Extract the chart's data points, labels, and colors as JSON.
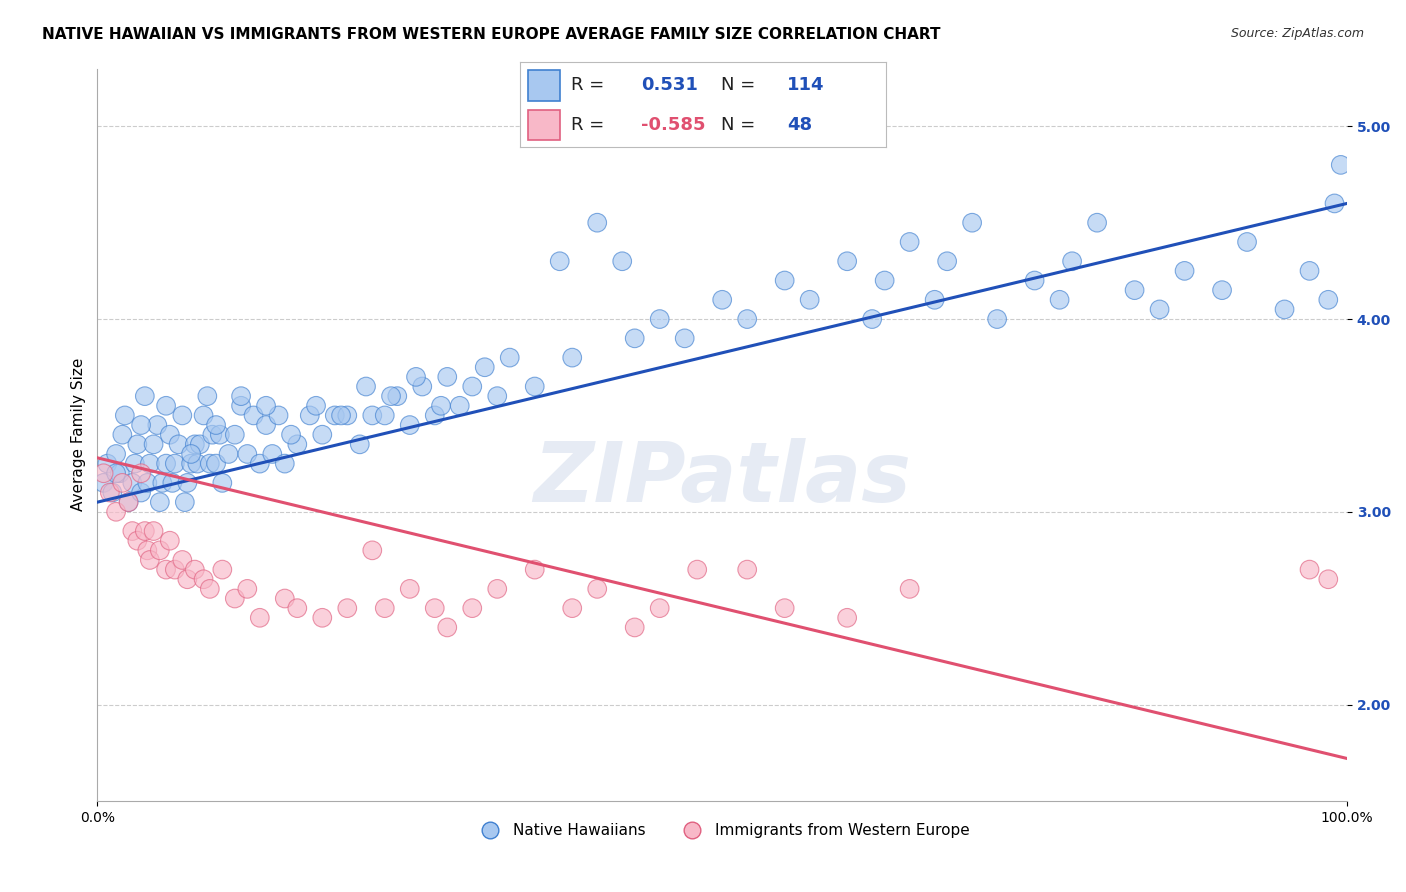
{
  "title": "NATIVE HAWAIIAN VS IMMIGRANTS FROM WESTERN EUROPE AVERAGE FAMILY SIZE CORRELATION CHART",
  "source": "Source: ZipAtlas.com",
  "ylabel": "Average Family Size",
  "xmin": 0.0,
  "xmax": 1.0,
  "ymin": 1.5,
  "ymax": 5.3,
  "yticks": [
    2.0,
    3.0,
    4.0,
    5.0
  ],
  "ytick_labels": [
    "2.00",
    "3.00",
    "4.00",
    "5.00"
  ],
  "xtick_labels": [
    "0.0%",
    "100.0%"
  ],
  "blue_R": 0.531,
  "blue_N": 114,
  "pink_R": -0.585,
  "pink_N": 48,
  "blue_face_color": "#A8C8F0",
  "pink_face_color": "#F8B8C8",
  "blue_edge_color": "#4080D0",
  "pink_edge_color": "#E06080",
  "blue_line_color": "#2050B8",
  "pink_line_color": "#E05070",
  "watermark": "ZIPatlas",
  "legend1_label": "Native Hawaiians",
  "legend2_label": "Immigrants from Western Europe",
  "blue_scatter_x": [
    0.005,
    0.008,
    0.012,
    0.015,
    0.018,
    0.02,
    0.022,
    0.025,
    0.028,
    0.03,
    0.032,
    0.035,
    0.038,
    0.04,
    0.042,
    0.045,
    0.048,
    0.05,
    0.052,
    0.055,
    0.058,
    0.06,
    0.062,
    0.065,
    0.068,
    0.07,
    0.072,
    0.075,
    0.078,
    0.08,
    0.082,
    0.085,
    0.088,
    0.09,
    0.092,
    0.095,
    0.098,
    0.1,
    0.105,
    0.11,
    0.115,
    0.12,
    0.125,
    0.13,
    0.135,
    0.14,
    0.145,
    0.15,
    0.16,
    0.17,
    0.18,
    0.19,
    0.2,
    0.21,
    0.22,
    0.23,
    0.24,
    0.25,
    0.26,
    0.27,
    0.28,
    0.29,
    0.3,
    0.31,
    0.32,
    0.33,
    0.35,
    0.37,
    0.38,
    0.4,
    0.42,
    0.43,
    0.45,
    0.47,
    0.5,
    0.52,
    0.55,
    0.57,
    0.6,
    0.62,
    0.63,
    0.65,
    0.67,
    0.68,
    0.7,
    0.72,
    0.75,
    0.77,
    0.78,
    0.8,
    0.83,
    0.85,
    0.87,
    0.9,
    0.92,
    0.95,
    0.97,
    0.985,
    0.99,
    0.995,
    0.015,
    0.035,
    0.055,
    0.075,
    0.095,
    0.115,
    0.135,
    0.155,
    0.175,
    0.195,
    0.215,
    0.235,
    0.255,
    0.275
  ],
  "blue_scatter_y": [
    3.15,
    3.25,
    3.1,
    3.3,
    3.2,
    3.4,
    3.5,
    3.05,
    3.15,
    3.25,
    3.35,
    3.1,
    3.6,
    3.15,
    3.25,
    3.35,
    3.45,
    3.05,
    3.15,
    3.25,
    3.4,
    3.15,
    3.25,
    3.35,
    3.5,
    3.05,
    3.15,
    3.25,
    3.35,
    3.25,
    3.35,
    3.5,
    3.6,
    3.25,
    3.4,
    3.25,
    3.4,
    3.15,
    3.3,
    3.4,
    3.55,
    3.3,
    3.5,
    3.25,
    3.45,
    3.3,
    3.5,
    3.25,
    3.35,
    3.5,
    3.4,
    3.5,
    3.5,
    3.35,
    3.5,
    3.5,
    3.6,
    3.45,
    3.65,
    3.5,
    3.7,
    3.55,
    3.65,
    3.75,
    3.6,
    3.8,
    3.65,
    4.3,
    3.8,
    4.5,
    4.3,
    3.9,
    4.0,
    3.9,
    4.1,
    4.0,
    4.2,
    4.1,
    4.3,
    4.0,
    4.2,
    4.4,
    4.1,
    4.3,
    4.5,
    4.0,
    4.2,
    4.1,
    4.3,
    4.5,
    4.15,
    4.05,
    4.25,
    4.15,
    4.4,
    4.05,
    4.25,
    4.1,
    4.6,
    4.8,
    3.2,
    3.45,
    3.55,
    3.3,
    3.45,
    3.6,
    3.55,
    3.4,
    3.55,
    3.5,
    3.65,
    3.6,
    3.7,
    3.55
  ],
  "pink_scatter_x": [
    0.005,
    0.01,
    0.015,
    0.02,
    0.025,
    0.028,
    0.032,
    0.035,
    0.038,
    0.04,
    0.042,
    0.045,
    0.05,
    0.055,
    0.058,
    0.062,
    0.068,
    0.072,
    0.078,
    0.085,
    0.09,
    0.1,
    0.11,
    0.12,
    0.13,
    0.15,
    0.16,
    0.18,
    0.2,
    0.22,
    0.23,
    0.25,
    0.27,
    0.28,
    0.3,
    0.32,
    0.35,
    0.38,
    0.4,
    0.43,
    0.45,
    0.48,
    0.52,
    0.55,
    0.6,
    0.65,
    0.97,
    0.985
  ],
  "pink_scatter_y": [
    3.2,
    3.1,
    3.0,
    3.15,
    3.05,
    2.9,
    2.85,
    3.2,
    2.9,
    2.8,
    2.75,
    2.9,
    2.8,
    2.7,
    2.85,
    2.7,
    2.75,
    2.65,
    2.7,
    2.65,
    2.6,
    2.7,
    2.55,
    2.6,
    2.45,
    2.55,
    2.5,
    2.45,
    2.5,
    2.8,
    2.5,
    2.6,
    2.5,
    2.4,
    2.5,
    2.6,
    2.7,
    2.5,
    2.6,
    2.4,
    2.5,
    2.7,
    2.7,
    2.5,
    2.45,
    2.6,
    2.7,
    2.65
  ],
  "blue_line_x0": 0.0,
  "blue_line_x1": 1.0,
  "blue_line_y0": 3.05,
  "blue_line_y1": 4.6,
  "pink_line_x0": 0.0,
  "pink_line_x1": 1.0,
  "pink_line_y0": 3.28,
  "pink_line_y1": 1.72,
  "title_fontsize": 11,
  "axis_label_fontsize": 11,
  "tick_fontsize": 10,
  "marker_size": 180
}
